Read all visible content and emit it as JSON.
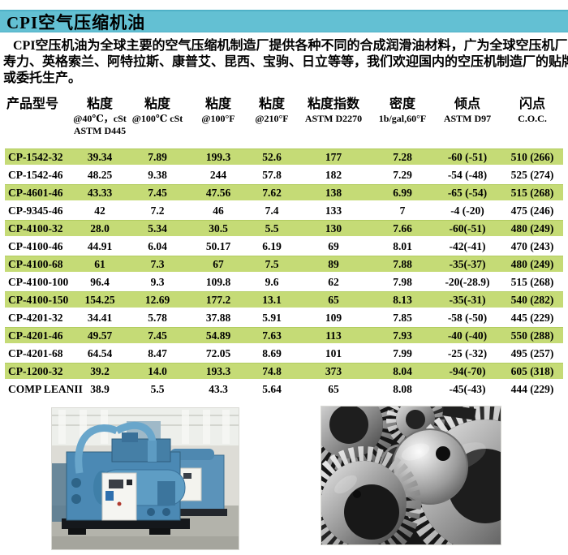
{
  "title_bar": {
    "title": "CPI空气压缩机油"
  },
  "intro": {
    "lines": [
      "CPI空压机油为全球主要的空气压缩机制造厂提供各种不同的合成润滑油材料，广为全球空压机厂家配套：",
      "寿力、英格索兰、阿特拉斯、康普艾、昆西、宝驹、日立等等，我们欢迎国内的空压机制造厂的贴牌配套",
      "或委托生产。"
    ]
  },
  "table": {
    "columns": [
      {
        "lines": [
          "产品型号"
        ]
      },
      {
        "lines": [
          "粘度",
          "@40℃，cSt",
          "ASTM D445"
        ]
      },
      {
        "lines": [
          "粘度",
          "@100℃ cSt"
        ]
      },
      {
        "lines": [
          "粘度",
          "@100°F"
        ]
      },
      {
        "lines": [
          "粘度",
          "@210°F"
        ]
      },
      {
        "lines": [
          "粘度指数",
          "ASTM D2270"
        ]
      },
      {
        "lines": [
          "密度",
          "1b/gal,60°F"
        ]
      },
      {
        "lines": [
          "倾点",
          "ASTM D97"
        ]
      },
      {
        "lines": [
          "闪点",
          "C.O.C."
        ]
      }
    ],
    "rows": [
      {
        "highlight": true,
        "cells": [
          "CP-1542-32",
          "39.34",
          "7.89",
          "199.3",
          "52.6",
          "177",
          "7.28",
          "-60 (-51)",
          "510 (266)"
        ]
      },
      {
        "highlight": false,
        "cells": [
          "CP-1542-46",
          "48.25",
          "9.38",
          "244",
          "57.8",
          "182",
          "7.29",
          "-54 (-48)",
          "525 (274)"
        ]
      },
      {
        "highlight": true,
        "cells": [
          "CP-4601-46",
          "43.33",
          "7.45",
          "47.56",
          "7.62",
          "138",
          "6.99",
          "-65 (-54)",
          "515 (268)"
        ]
      },
      {
        "highlight": false,
        "cells": [
          "CP-9345-46",
          "42",
          "7.2",
          "46",
          "7.4",
          "133",
          "7",
          "-4 (-20)",
          "475 (246)"
        ]
      },
      {
        "highlight": true,
        "cells": [
          "CP-4100-32",
          "28.0",
          "5.34",
          "30.5",
          "5.5",
          "130",
          "7.66",
          "-60(-51)",
          "480 (249)"
        ]
      },
      {
        "highlight": false,
        "cells": [
          "CP-4100-46",
          "44.91",
          "6.04",
          "50.17",
          "6.19",
          "69",
          "8.01",
          "-42(-41)",
          "470 (243)"
        ]
      },
      {
        "highlight": true,
        "cells": [
          "CP-4100-68",
          "61",
          "7.3",
          "67",
          "7.5",
          "89",
          "7.88",
          "-35(-37)",
          "480 (249)"
        ]
      },
      {
        "highlight": false,
        "cells": [
          "CP-4100-100",
          "96.4",
          "9.3",
          "109.8",
          "9.6",
          "62",
          "7.98",
          "-20(-28.9)",
          "515 (268)"
        ]
      },
      {
        "highlight": true,
        "cells": [
          "CP-4100-150",
          "154.25",
          "12.69",
          "177.2",
          "13.1",
          "65",
          "8.13",
          "-35(-31)",
          "540 (282)"
        ]
      },
      {
        "highlight": false,
        "cells": [
          "CP-4201-32",
          "34.41",
          "5.78",
          "37.88",
          "5.91",
          "109",
          "7.85",
          "-58 (-50)",
          "445 (229)"
        ]
      },
      {
        "highlight": true,
        "cells": [
          "CP-4201-46",
          "49.57",
          "7.45",
          "54.89",
          "7.63",
          "113",
          "7.93",
          "-40 (-40)",
          "550 (288)"
        ]
      },
      {
        "highlight": false,
        "cells": [
          "CP-4201-68",
          "64.54",
          "8.47",
          "72.05",
          "8.69",
          "101",
          "7.99",
          "-25 (-32)",
          "495 (257)"
        ]
      },
      {
        "highlight": true,
        "cells": [
          "CP-1200-32",
          "39.2",
          "14.0",
          "193.3",
          "74.8",
          "373",
          "8.04",
          "-94(-70)",
          "605 (318)"
        ]
      },
      {
        "highlight": false,
        "cells": [
          "COMP LEANII",
          "38.9",
          "5.5",
          "43.3",
          "5.64",
          "65",
          "8.08",
          "-45(-43)",
          "444 (229)"
        ]
      }
    ]
  },
  "colors": {
    "title_bg": "#63c0d3",
    "row_highlight": "#c5db76",
    "text": "#000000"
  }
}
